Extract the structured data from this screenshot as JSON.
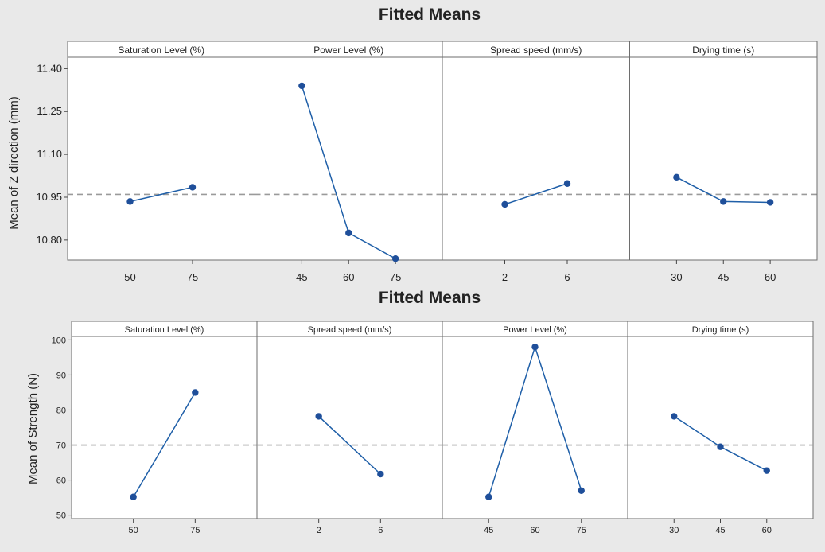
{
  "chart_data": [
    {
      "type": "line",
      "title": "Fitted Means",
      "ylabel": "Mean of Z direction (mm)",
      "yticks": [
        "10.80",
        "10.95",
        "11.10",
        "11.25",
        "11.40"
      ],
      "ylim": [
        10.73,
        11.44
      ],
      "reference_mean": 10.96,
      "panels": [
        {
          "name": "Saturation Level (%)",
          "categories": [
            "50",
            "75"
          ],
          "values": [
            10.935,
            10.985
          ]
        },
        {
          "name": "Power Level (%)",
          "categories": [
            "45",
            "60",
            "75"
          ],
          "values": [
            11.34,
            10.825,
            10.735
          ]
        },
        {
          "name": "Spread speed (mm/s)",
          "categories": [
            "2",
            "6"
          ],
          "values": [
            10.925,
            10.998
          ]
        },
        {
          "name": "Drying time (s)",
          "categories": [
            "30",
            "45",
            "60"
          ],
          "values": [
            11.02,
            10.935,
            10.932
          ]
        }
      ]
    },
    {
      "type": "line",
      "title": "Fitted Means",
      "ylabel": "Mean of Strength (N)",
      "yticks": [
        "50",
        "60",
        "70",
        "80",
        "90",
        "100"
      ],
      "ylim": [
        49,
        101
      ],
      "reference_mean": 70,
      "panels": [
        {
          "name": "Saturation Level (%)",
          "categories": [
            "50",
            "75"
          ],
          "values": [
            55.2,
            85.0
          ]
        },
        {
          "name": "Spread speed (mm/s)",
          "categories": [
            "2",
            "6"
          ],
          "values": [
            78.2,
            61.7
          ]
        },
        {
          "name": "Power Level (%)",
          "categories": [
            "45",
            "60",
            "75"
          ],
          "values": [
            55.2,
            98.0,
            57.0
          ]
        },
        {
          "name": "Drying time (s)",
          "categories": [
            "30",
            "45",
            "60"
          ],
          "values": [
            78.2,
            69.5,
            62.7
          ]
        }
      ]
    }
  ],
  "colors": {
    "series": "#1f5fa8",
    "marker": "#1f4f9a",
    "reference": "#9a9a9a",
    "panel_border": "#6e6e6e",
    "strip_fill": "#ffffff",
    "outer_bg_top": "#e9e9e9",
    "outer_bg_bottom": "#e9e9e9"
  }
}
